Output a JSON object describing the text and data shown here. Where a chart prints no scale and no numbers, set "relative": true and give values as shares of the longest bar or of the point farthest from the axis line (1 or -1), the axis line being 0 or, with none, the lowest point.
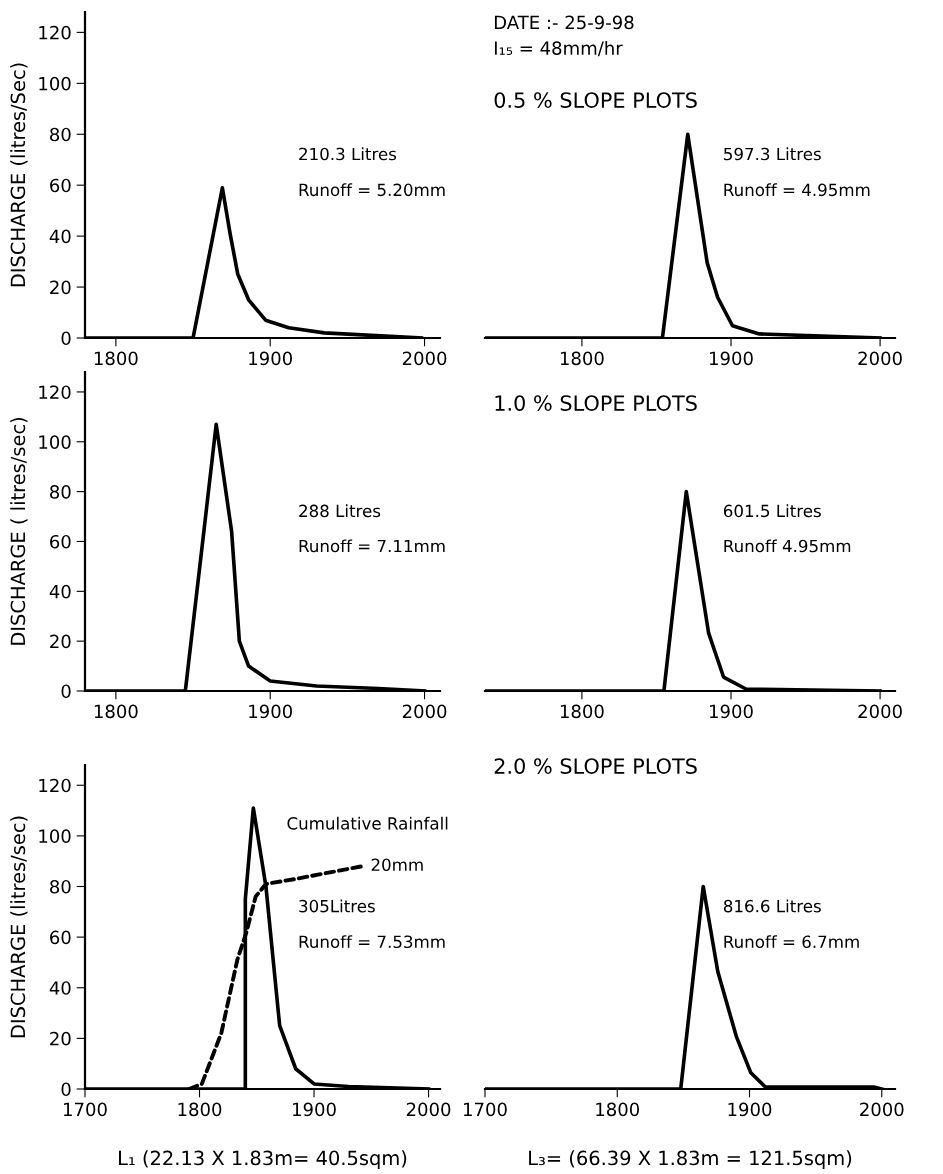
{
  "chart_data": [
    {
      "type": "line",
      "ylabel": "DISCHARGE (litres/Sec)",
      "xlim": [
        1780,
        2010
      ],
      "xticks": [
        1800,
        1900,
        2000
      ],
      "ylim": [
        0,
        128
      ],
      "yticks": [
        0,
        20,
        40,
        60,
        80,
        100,
        120
      ],
      "series": [
        {
          "color": "#000000",
          "x": [
            1780,
            1850,
            1869,
            1874,
            1879,
            1886,
            1897,
            1912,
            1935,
            1998
          ],
          "values": [
            0,
            0,
            59,
            41,
            25,
            15,
            7,
            4,
            2,
            0
          ]
        }
      ],
      "annotations": [
        "210.3 Litres",
        "Runoff = 5.20mm"
      ]
    },
    {
      "type": "line",
      "title": "0.5 % SLOPE PLOTS",
      "subtitle": "DATE :- 25-9-98\nI₁₅ = 48mm/hr",
      "xlim": [
        1735,
        2010
      ],
      "xticks": [
        1800,
        1900,
        2000
      ],
      "tick_labels": "x",
      "relative": true,
      "series": [
        {
          "color": "#000000",
          "x": [
            1735,
            1854,
            1871,
            1884,
            1891,
            1901,
            1919,
            2000
          ],
          "values": [
            0,
            0,
            1,
            0.37,
            0.2,
            0.06,
            0.02,
            0
          ]
        }
      ],
      "annotations": [
        "597.3 Litres",
        "Runoff = 4.95mm"
      ]
    },
    {
      "type": "line",
      "ylabel": "DISCHARGE ( litres/sec)",
      "xlim": [
        1780,
        2010
      ],
      "xticks": [
        1800,
        1900,
        2000
      ],
      "ylim": [
        0,
        128
      ],
      "yticks": [
        0,
        20,
        40,
        60,
        80,
        100,
        120
      ],
      "series": [
        {
          "color": "#000000",
          "x": [
            1780,
            1845,
            1857,
            1865,
            1875,
            1880,
            1886,
            1900,
            1930,
            1970,
            2000
          ],
          "values": [
            0,
            0,
            64,
            107,
            64,
            20,
            10,
            4,
            2,
            1,
            0
          ]
        }
      ],
      "annotations": [
        "288 Litres",
        "Runoff = 7.11mm"
      ]
    },
    {
      "type": "line",
      "title": "1.0 % SLOPE PLOTS",
      "xlim": [
        1735,
        2010
      ],
      "xticks": [
        1800,
        1900,
        2000
      ],
      "tick_labels": "x",
      "relative": true,
      "series": [
        {
          "color": "#000000",
          "x": [
            1735,
            1855,
            1870,
            1885,
            1895,
            1910,
            2000
          ],
          "values": [
            0,
            0,
            1,
            0.29,
            0.07,
            0.01,
            0
          ]
        }
      ],
      "annotations": [
        "601.5 Litres",
        "Runoff 4.95mm"
      ]
    },
    {
      "type": "line",
      "ylabel": "DISCHARGE (litres/sec)",
      "xlabel": "L₁ (22.13 X 1.83m= 40.5sqm)",
      "xlim": [
        1700,
        2010
      ],
      "xticks": [
        1700,
        1800,
        1900,
        2000
      ],
      "ylim": [
        0,
        128
      ],
      "yticks": [
        0,
        20,
        40,
        60,
        80,
        100,
        120
      ],
      "series": [
        {
          "color": "#000000",
          "x": [
            1700,
            1840,
            1840,
            1847,
            1858,
            1870,
            1884,
            1900,
            1930,
            2000
          ],
          "values": [
            0,
            0,
            75,
            111,
            80,
            25,
            8,
            2,
            1,
            0
          ]
        },
        {
          "name": "Cumulative Rainfall",
          "color": "#000000",
          "line_style": "dashed",
          "x": [
            1791,
            1802,
            1819,
            1833,
            1841,
            1849,
            1858,
            1884,
            1942
          ],
          "values": [
            0,
            2,
            22,
            51,
            62,
            76,
            81,
            83,
            88
          ]
        }
      ],
      "annotations": [
        {
          "text": "20mm",
          "x": 1942,
          "y": 88
        },
        "305Litres",
        "Runoff = 7.53mm"
      ]
    },
    {
      "type": "line",
      "title": "2.0 % SLOPE PLOTS",
      "xlabel": "L₃= (66.39 X 1.83m = 121.5sqm)",
      "xlim": [
        1700,
        2010
      ],
      "xticks": [
        1700,
        1800,
        1900,
        2000
      ],
      "tick_labels": "x",
      "relative": true,
      "series": [
        {
          "color": "#000000",
          "x": [
            1700,
            1848,
            1865,
            1876,
            1890,
            1901,
            1912,
            1994,
            2000
          ],
          "values": [
            0,
            0,
            1,
            0.58,
            0.26,
            0.08,
            0.01,
            0.01,
            0
          ]
        }
      ],
      "annotations": [
        "816.6 Litres",
        "Runoff = 6.7mm"
      ]
    }
  ]
}
